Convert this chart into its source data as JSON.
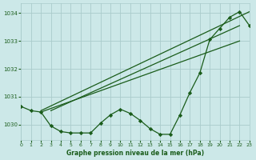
{
  "title": "Graphe pression niveau de la mer (hPa)",
  "bg_color": "#cce8e8",
  "grid_color": "#aacccc",
  "line_color": "#1a5c1a",
  "xmin": 0,
  "xmax": 23,
  "ymin": 1029.45,
  "ymax": 1034.35,
  "yticks": [
    1030,
    1031,
    1032,
    1033,
    1034
  ],
  "xticks": [
    0,
    1,
    2,
    3,
    4,
    5,
    6,
    7,
    8,
    9,
    10,
    11,
    12,
    13,
    14,
    15,
    16,
    17,
    18,
    19,
    20,
    21,
    22,
    23
  ],
  "main_x": [
    0,
    1,
    2,
    3,
    4,
    5,
    6,
    7,
    8,
    9,
    10,
    11,
    12,
    13,
    14,
    15,
    16,
    17,
    18,
    19,
    20,
    21,
    22,
    23
  ],
  "main_y": [
    1030.65,
    1030.5,
    1030.45,
    1029.95,
    1029.75,
    1029.7,
    1029.7,
    1029.7,
    1030.05,
    1030.35,
    1030.55,
    1030.4,
    1030.15,
    1029.85,
    1029.65,
    1029.65,
    1030.35,
    1031.15,
    1031.85,
    1033.05,
    1033.45,
    1033.85,
    1034.05,
    1033.55
  ],
  "trend1_x": [
    2,
    23
  ],
  "trend1_y": [
    1030.5,
    1034.05
  ],
  "trend2_x": [
    2,
    22
  ],
  "trend2_y": [
    1030.45,
    1033.0
  ],
  "trend3_x": [
    3,
    22
  ],
  "trend3_y": [
    1030.5,
    1033.55
  ]
}
